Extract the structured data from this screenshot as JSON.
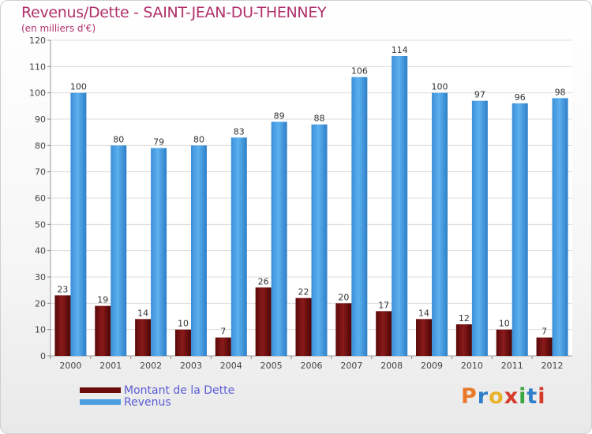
{
  "header": {
    "title": "Revenus/Dette - SAINT-JEAN-DU-THENNEY",
    "subtitle": "(en milliers d'€)"
  },
  "legend": {
    "items": [
      {
        "label": "Montant de la Dette",
        "color": "#7a1010"
      },
      {
        "label": "Revenus",
        "color": "#4a9fe0"
      }
    ]
  },
  "logo": {
    "text": "Proxiti"
  },
  "colors": {
    "dette": "#7a1010",
    "revenus": "#4a9fe0",
    "title": "#b0306a",
    "legend_text": "#5b5bd6"
  },
  "chart_data": {
    "type": "bar",
    "title": "Revenus/Dette - SAINT-JEAN-DU-THENNEY",
    "subtitle": "(en milliers d'€)",
    "xlabel": "",
    "ylabel": "",
    "ylim": [
      0,
      120
    ],
    "yticks": [
      0,
      10,
      20,
      30,
      40,
      50,
      60,
      70,
      80,
      90,
      100,
      110,
      120
    ],
    "grid": true,
    "legend_position": "bottom-left",
    "categories": [
      "2000",
      "2001",
      "2002",
      "2003",
      "2004",
      "2005",
      "2006",
      "2007",
      "2008",
      "2009",
      "2010",
      "2011",
      "2012"
    ],
    "series": [
      {
        "name": "Montant de la Dette",
        "values": [
          23,
          19,
          14,
          10,
          7,
          26,
          22,
          20,
          17,
          14,
          12,
          10,
          7
        ]
      },
      {
        "name": "Revenus",
        "values": [
          100,
          80,
          79,
          80,
          83,
          89,
          88,
          106,
          114,
          100,
          97,
          96,
          98
        ]
      }
    ]
  }
}
